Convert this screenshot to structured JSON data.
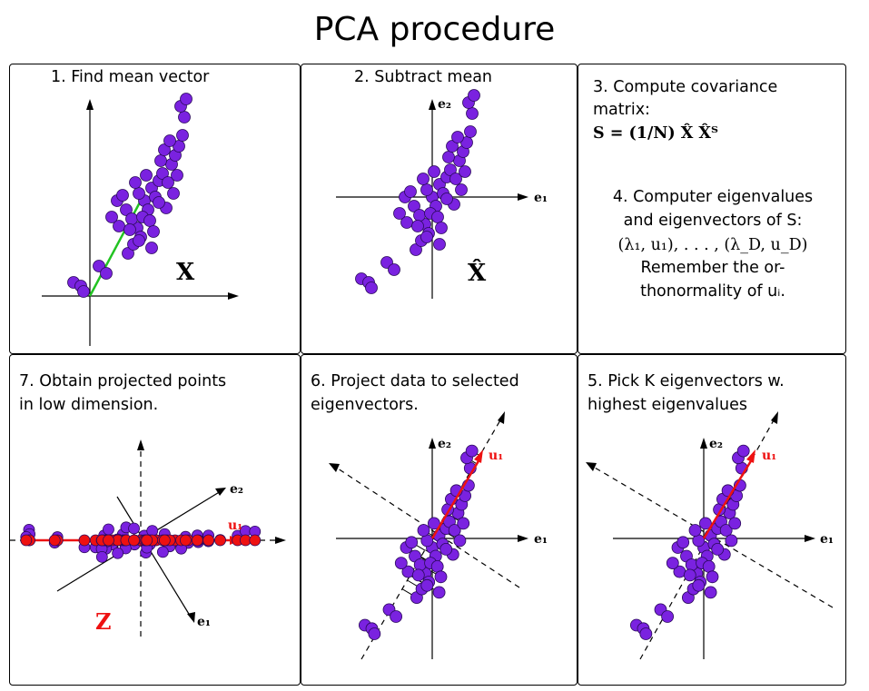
{
  "title": "PCA procedure",
  "panels": {
    "p1": {
      "label": "1. Find mean vector",
      "data_label": "X"
    },
    "p2": {
      "label": "2. Subtract mean",
      "data_label": "X̂",
      "e1": "e₁",
      "e2": "e₂"
    },
    "p3": {
      "step3_line1": "3. Compute covariance",
      "step3_line2": "matrix:",
      "formula": "S = (1/N) X̂ X̂ᵀ",
      "step4_line1": "4. Computer eigenvalues",
      "step4_line2": "and eigenvectors of S:",
      "step4_line3": "(λ₁, u₁), . . . , (λ_D, u_D)",
      "step4_line4": "Remember the or-",
      "step4_line5": "thonormality of uᵢ."
    },
    "p4": {
      "label_line1": "7. Obtain projected points",
      "label_line2": "in low dimension.",
      "data_label": "Z",
      "e1": "e₁",
      "e2": "e₂",
      "u1": "u₁"
    },
    "p5": {
      "label_line1": "6. Project data to selected",
      "label_line2": "eigenvectors.",
      "e1": "e₁",
      "e2": "e₂",
      "u1": "u₁"
    },
    "p6": {
      "label_line1": "5. Pick K eigenvectors w.",
      "label_line2": "highest eigenvalues",
      "e1": "e₁",
      "e2": "e₂",
      "u1": "u₁"
    }
  },
  "colors": {
    "points": "#7a22e0",
    "projected": "#ee1111",
    "mean_vector": "#22c322",
    "eigenvector": "#ee1111"
  }
}
